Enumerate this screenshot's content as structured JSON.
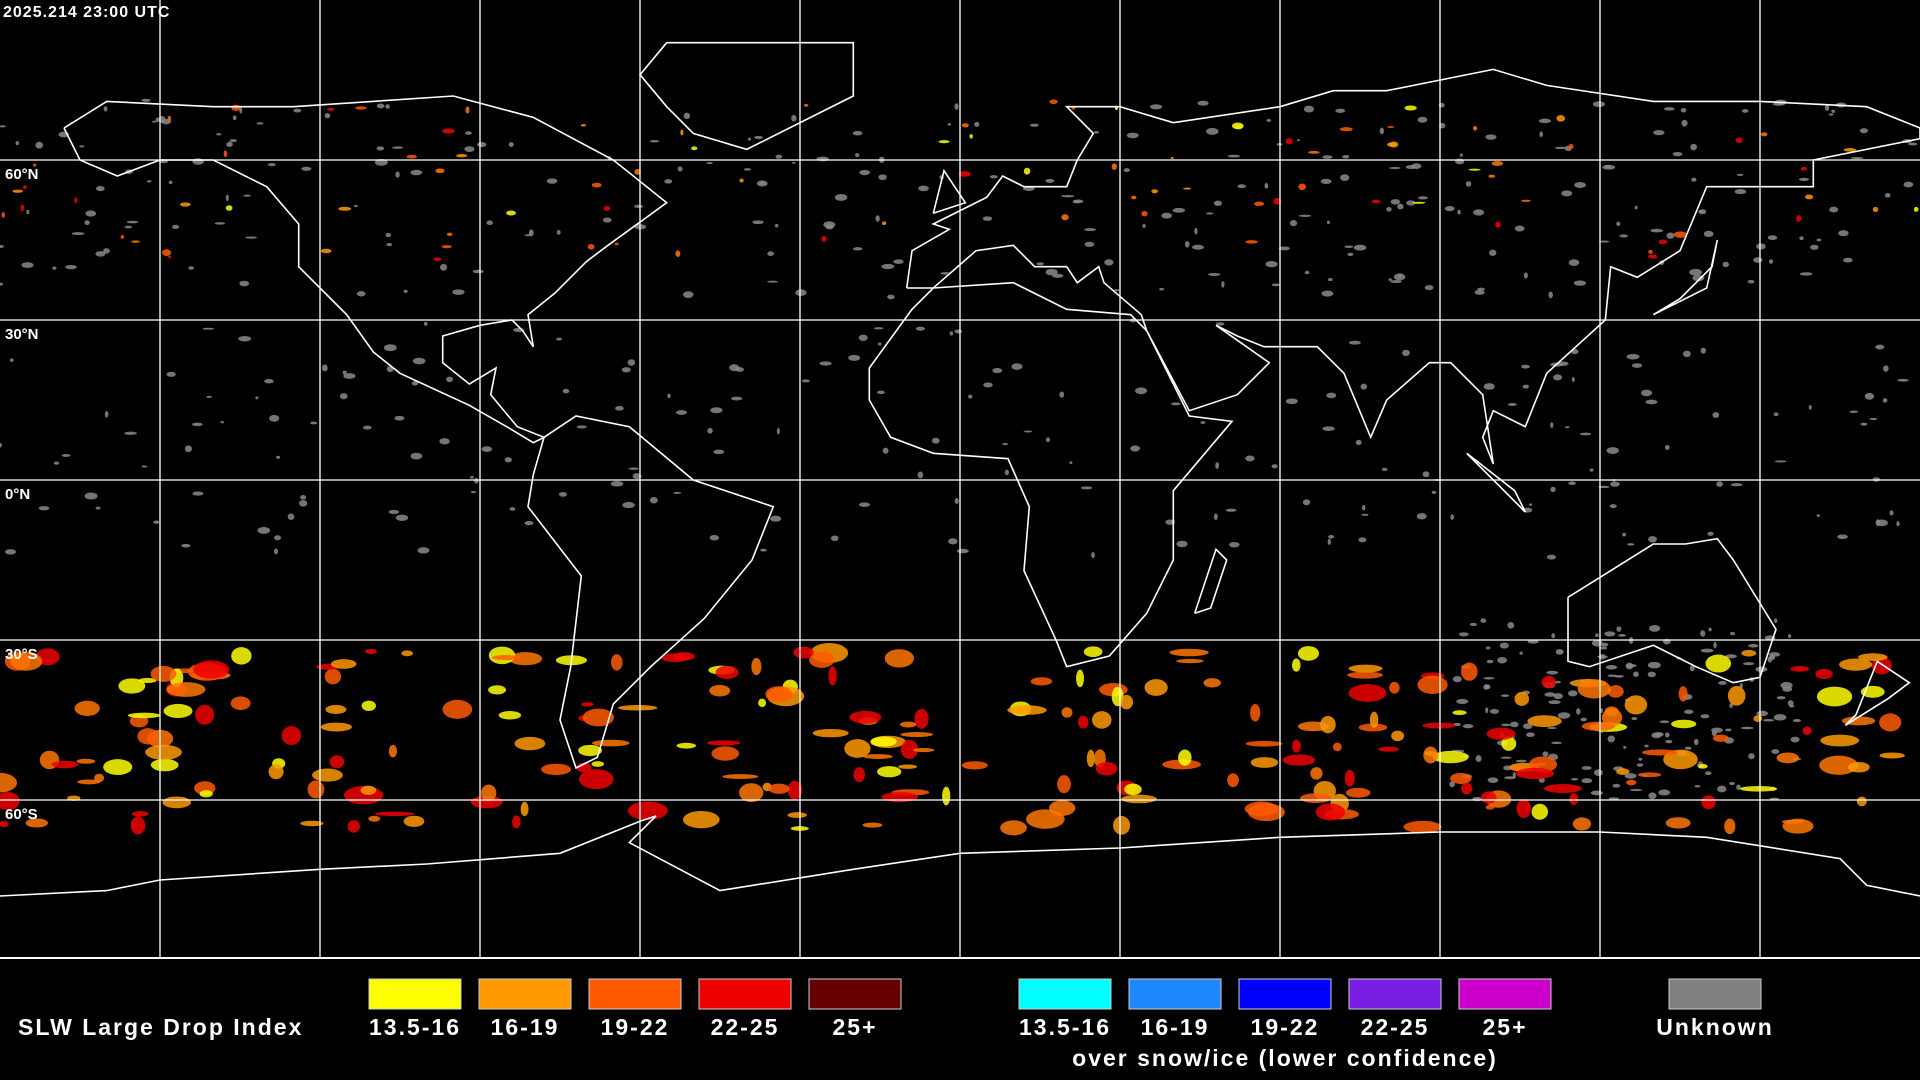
{
  "header": {
    "timestamp": "2025.214 23:00 UTC"
  },
  "map": {
    "latitude_labels": [
      "60°N",
      "30°N",
      "0°N",
      "30°S",
      "60°S"
    ]
  },
  "legend": {
    "title": "SLW Large Drop Index",
    "groups": [
      {
        "items": [
          {
            "label": "13.5-16",
            "color": "#ffff00"
          },
          {
            "label": "16-19",
            "color": "#ff9900"
          },
          {
            "label": "19-22",
            "color": "#ff5a00"
          },
          {
            "label": "22-25",
            "color": "#ee0000"
          },
          {
            "label": "25+",
            "color": "#660000"
          }
        ]
      },
      {
        "items": [
          {
            "label": "13.5-16",
            "color": "#00ffff"
          },
          {
            "label": "16-19",
            "color": "#1e88ff"
          },
          {
            "label": "19-22",
            "color": "#0000ff"
          },
          {
            "label": "22-25",
            "color": "#7a1ee6"
          },
          {
            "label": "25+",
            "color": "#cc00cc"
          }
        ],
        "caption": "over snow/ice (lower confidence)"
      }
    ],
    "unknown": {
      "label": "Unknown",
      "color": "#808080"
    }
  }
}
